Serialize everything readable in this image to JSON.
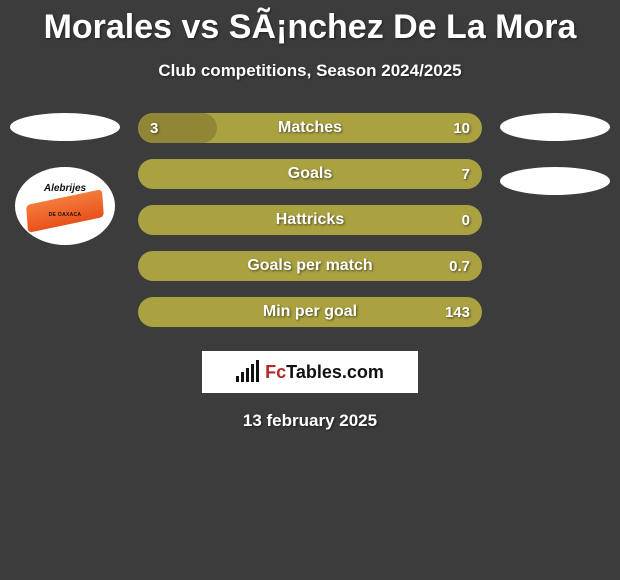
{
  "header": {
    "title": "Morales vs SÃ¡nchez De La Mora",
    "subtitle": "Club competitions, Season 2024/2025"
  },
  "left": {
    "logo_main": "Alebrijes",
    "logo_sub": "DE OAXACA"
  },
  "stats": {
    "bar_background": "#aaa141",
    "bar_fill_color": "#8f8636",
    "rows": [
      {
        "label": "Matches",
        "left": "3",
        "right": "10",
        "fill_percent": 23
      },
      {
        "label": "Goals",
        "left": "",
        "right": "7",
        "fill_percent": 0
      },
      {
        "label": "Hattricks",
        "left": "",
        "right": "0",
        "fill_percent": 0
      },
      {
        "label": "Goals per match",
        "left": "",
        "right": "0.7",
        "fill_percent": 0
      },
      {
        "label": "Min per goal",
        "left": "",
        "right": "143",
        "fill_percent": 0
      }
    ]
  },
  "brand": {
    "name_prefix": "Fc",
    "name_main": "Tables",
    "name_suffix": ".com"
  },
  "footer": {
    "date": "13 february 2025"
  }
}
